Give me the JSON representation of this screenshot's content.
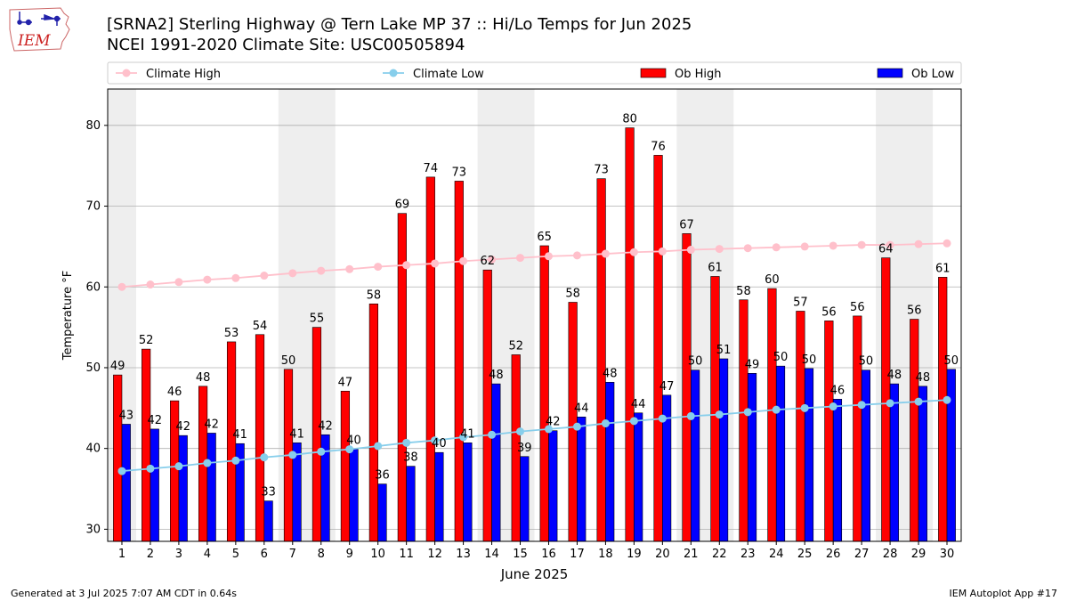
{
  "header": {
    "title": "[SRNA2] Sterling Highway @ Tern Lake MP 37 :: Hi/Lo Temps for Jun 2025",
    "subtitle": "NCEI 1991-2020 Climate Site: USC00505894",
    "logo_text": "IEM"
  },
  "footer": {
    "generated": "Generated at 3 Jul 2025 7:07 AM CDT in 0.64s",
    "app": "IEM Autoplot App #17"
  },
  "chart_data": {
    "type": "bar",
    "xlabel": "June 2025",
    "ylabel": "Temperature °F",
    "ylim": [
      28.5,
      84.5
    ],
    "yticks": [
      30,
      40,
      50,
      60,
      70,
      80
    ],
    "grid": true,
    "legend_position": "top",
    "categories": [
      1,
      2,
      3,
      4,
      5,
      6,
      7,
      8,
      9,
      10,
      11,
      12,
      13,
      14,
      15,
      16,
      17,
      18,
      19,
      20,
      21,
      22,
      23,
      24,
      25,
      26,
      27,
      28,
      29,
      30
    ],
    "weekend_shading": [
      [
        1,
        1
      ],
      [
        7,
        8
      ],
      [
        14,
        15
      ],
      [
        21,
        22
      ],
      [
        28,
        29
      ]
    ],
    "series": [
      {
        "name": "Climate High",
        "kind": "line",
        "color": "#ffc0cb",
        "values": [
          60.0,
          60.3,
          60.6,
          60.9,
          61.1,
          61.4,
          61.7,
          62.0,
          62.2,
          62.5,
          62.7,
          62.9,
          63.2,
          63.4,
          63.6,
          63.8,
          63.9,
          64.1,
          64.3,
          64.4,
          64.6,
          64.7,
          64.8,
          64.9,
          65.0,
          65.1,
          65.2,
          65.2,
          65.3,
          65.4
        ]
      },
      {
        "name": "Climate Low",
        "kind": "line",
        "color": "#87ceeb",
        "values": [
          37.2,
          37.5,
          37.8,
          38.2,
          38.5,
          38.9,
          39.2,
          39.6,
          39.9,
          40.3,
          40.7,
          41.0,
          41.4,
          41.7,
          42.1,
          42.4,
          42.7,
          43.1,
          43.4,
          43.7,
          44.0,
          44.2,
          44.5,
          44.8,
          45.0,
          45.2,
          45.4,
          45.6,
          45.8,
          46.0
        ]
      },
      {
        "name": "Ob High",
        "kind": "bar",
        "color": "#ff0000",
        "values": [
          49,
          52,
          46,
          48,
          53,
          54,
          50,
          55,
          47,
          58,
          69,
          74,
          73,
          62,
          52,
          65,
          58,
          73,
          80,
          76,
          67,
          61,
          58,
          60,
          57,
          56,
          56,
          64,
          56,
          61
        ],
        "display_values": [
          49.1,
          52.3,
          45.9,
          47.7,
          53.2,
          54.1,
          49.8,
          55.0,
          47.1,
          57.9,
          69.1,
          73.6,
          73.1,
          62.1,
          51.6,
          65.1,
          58.1,
          73.4,
          79.7,
          76.3,
          66.6,
          61.3,
          58.4,
          59.8,
          57.0,
          55.8,
          56.4,
          63.6,
          56.0,
          61.2
        ]
      },
      {
        "name": "Ob Low",
        "kind": "bar",
        "color": "#0000ff",
        "values": [
          43,
          42,
          42,
          42,
          41,
          33,
          41,
          42,
          40,
          36,
          38,
          40,
          41,
          48,
          39,
          42,
          44,
          48,
          44,
          47,
          50,
          51,
          49,
          50,
          50,
          46,
          50,
          48,
          48,
          50
        ],
        "display_values": [
          43.0,
          42.4,
          41.6,
          41.9,
          40.6,
          33.5,
          40.7,
          41.7,
          39.9,
          35.6,
          37.8,
          39.5,
          40.7,
          48.0,
          39.0,
          42.2,
          43.9,
          48.2,
          44.4,
          46.6,
          49.7,
          51.1,
          49.3,
          50.2,
          49.9,
          46.1,
          49.7,
          48.0,
          47.7,
          49.8
        ]
      }
    ]
  }
}
